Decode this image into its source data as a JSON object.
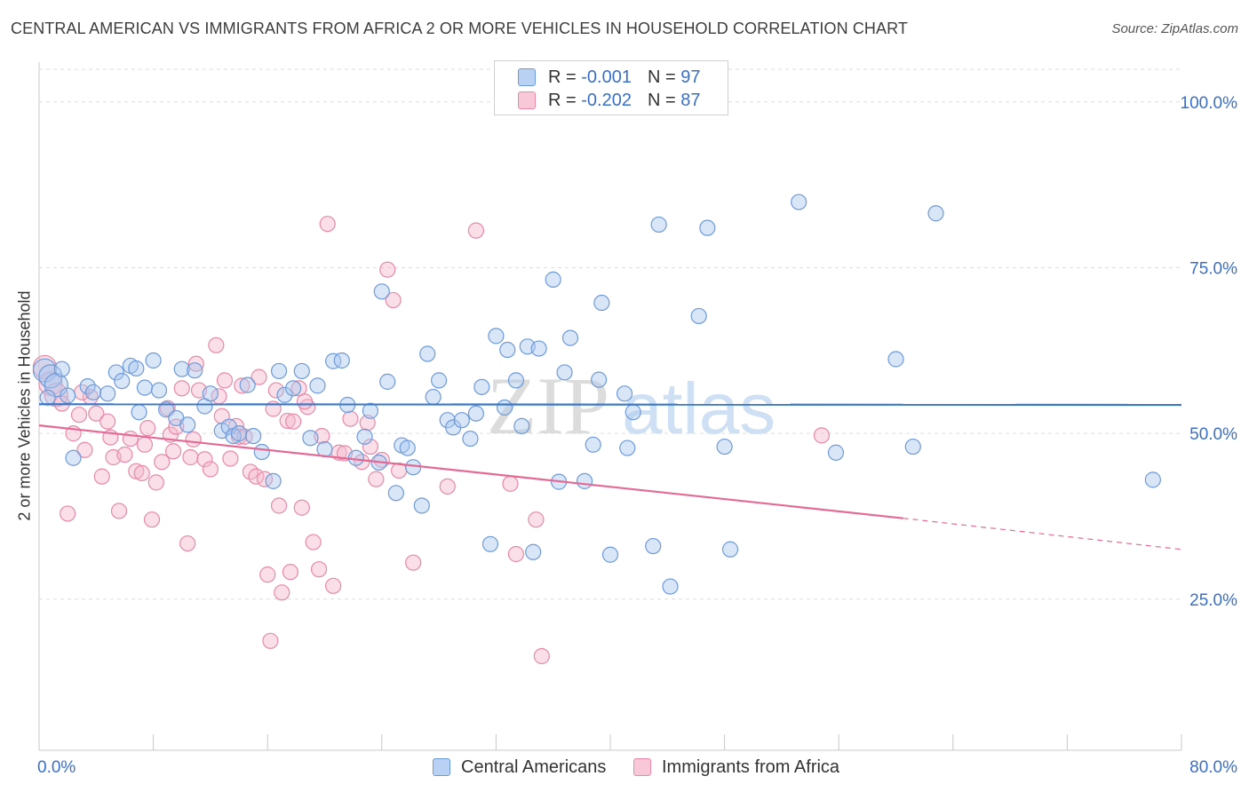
{
  "header": {
    "title": "CENTRAL AMERICAN VS IMMIGRANTS FROM AFRICA 2 OR MORE VEHICLES IN HOUSEHOLD CORRELATION CHART",
    "source": "Source: ZipAtlas.com"
  },
  "watermark": {
    "zip": "ZIP",
    "atlas": "atlas"
  },
  "legend": {
    "rows": [
      {
        "r_label": "R =",
        "r_value": "-0.001",
        "n_label": "N =",
        "n_value": "97"
      },
      {
        "r_label": "R =",
        "r_value": "-0.202",
        "n_label": "N =",
        "n_value": "87"
      }
    ]
  },
  "bottom_legend": {
    "items": [
      {
        "label": "Central Americans"
      },
      {
        "label": "Immigrants from Africa"
      }
    ]
  },
  "chart_data": {
    "type": "scatter",
    "ylabel": "2 or more Vehicles in Household",
    "xlabel": "",
    "xlim": [
      0,
      80
    ],
    "ylim": [
      2.2,
      106
    ],
    "x_tick_labels": [
      "0.0%",
      "80.0%"
    ],
    "y_ticks": [
      25,
      50,
      75,
      100
    ],
    "y_tick_labels": [
      "25.0%",
      "50.0%",
      "75.0%",
      "100.0%"
    ],
    "grid": true,
    "colors": {
      "blue_fill": "#a9c7f0",
      "blue_stroke": "#6f9ad8",
      "blue_line": "#3a78c8",
      "pink_fill": "#f5b7cb",
      "pink_stroke": "#e68aa8",
      "pink_line": "#e46a95",
      "tick_label": "#3a6fc9",
      "grid": "#dddddd"
    },
    "series": [
      {
        "name": "Central Americans",
        "color": "#a9c7f0",
        "trend": {
          "x0": 0,
          "y0": 54.4,
          "x1": 80,
          "y1": 54.3
        },
        "points": [
          [
            0.4,
            59.5
          ],
          [
            0.8,
            58.6
          ],
          [
            1.2,
            57.3
          ],
          [
            1.6,
            59.7
          ],
          [
            2.4,
            46.3
          ],
          [
            3.4,
            57.1
          ],
          [
            3.8,
            56.2
          ],
          [
            4.8,
            56.0
          ],
          [
            5.4,
            59.2
          ],
          [
            5.8,
            57.9
          ],
          [
            6.4,
            60.2
          ],
          [
            6.8,
            59.8
          ],
          [
            7.4,
            56.9
          ],
          [
            8.0,
            61.0
          ],
          [
            8.4,
            56.5
          ],
          [
            8.9,
            53.6
          ],
          [
            9.6,
            52.3
          ],
          [
            10.0,
            59.7
          ],
          [
            10.4,
            51.3
          ],
          [
            10.9,
            59.5
          ],
          [
            11.6,
            54.1
          ],
          [
            12.0,
            56.0
          ],
          [
            12.8,
            50.4
          ],
          [
            13.3,
            51.0
          ],
          [
            13.6,
            49.6
          ],
          [
            14.0,
            50.0
          ],
          [
            14.6,
            57.3
          ],
          [
            15.0,
            49.6
          ],
          [
            15.6,
            47.2
          ],
          [
            16.4,
            42.8
          ],
          [
            16.8,
            59.4
          ],
          [
            17.2,
            55.8
          ],
          [
            17.8,
            56.8
          ],
          [
            18.4,
            59.4
          ],
          [
            19.0,
            49.3
          ],
          [
            19.5,
            57.2
          ],
          [
            20.0,
            47.6
          ],
          [
            20.6,
            60.9
          ],
          [
            21.2,
            61.0
          ],
          [
            21.6,
            54.3
          ],
          [
            22.2,
            46.3
          ],
          [
            22.8,
            49.5
          ],
          [
            23.2,
            53.4
          ],
          [
            23.8,
            45.6
          ],
          [
            24.0,
            71.4
          ],
          [
            24.4,
            57.8
          ],
          [
            25.0,
            41.0
          ],
          [
            25.4,
            48.2
          ],
          [
            25.8,
            47.8
          ],
          [
            26.2,
            44.9
          ],
          [
            26.8,
            39.1
          ],
          [
            27.2,
            62.0
          ],
          [
            27.6,
            55.5
          ],
          [
            28.0,
            58.0
          ],
          [
            28.6,
            52.0
          ],
          [
            29.0,
            50.9
          ],
          [
            29.6,
            52.0
          ],
          [
            30.2,
            49.2
          ],
          [
            30.6,
            53.0
          ],
          [
            31.0,
            57.0
          ],
          [
            31.6,
            33.3
          ],
          [
            32.0,
            64.7
          ],
          [
            32.6,
            53.9
          ],
          [
            32.8,
            62.6
          ],
          [
            33.4,
            58.0
          ],
          [
            33.8,
            51.1
          ],
          [
            34.2,
            63.1
          ],
          [
            34.6,
            32.1
          ],
          [
            35.0,
            62.8
          ],
          [
            36.0,
            73.2
          ],
          [
            36.4,
            42.7
          ],
          [
            36.8,
            59.2
          ],
          [
            37.2,
            64.4
          ],
          [
            38.2,
            42.8
          ],
          [
            38.8,
            48.3
          ],
          [
            39.2,
            58.1
          ],
          [
            39.4,
            69.7
          ],
          [
            40.0,
            31.7
          ],
          [
            41.0,
            56.0
          ],
          [
            41.2,
            47.8
          ],
          [
            41.6,
            53.2
          ],
          [
            43.0,
            33.0
          ],
          [
            43.4,
            81.5
          ],
          [
            44.2,
            26.9
          ],
          [
            46.2,
            67.7
          ],
          [
            46.8,
            81.0
          ],
          [
            48.0,
            48.0
          ],
          [
            48.4,
            32.5
          ],
          [
            53.2,
            84.9
          ],
          [
            55.8,
            47.1
          ],
          [
            60.0,
            61.2
          ],
          [
            61.2,
            48.0
          ],
          [
            62.8,
            83.2
          ],
          [
            78.0,
            43.0
          ],
          [
            0.6,
            55.4
          ],
          [
            2.0,
            55.7
          ],
          [
            7.0,
            53.2
          ]
        ]
      },
      {
        "name": "Immigrants from Africa",
        "color": "#f5b7cb",
        "trend": {
          "x0": 0,
          "y0": 51.2,
          "x1": 60.5,
          "y1": 37.2,
          "dash_x1": 80,
          "dash_y1": 32.5
        },
        "points": [
          [
            0.4,
            60.0
          ],
          [
            0.8,
            57.5
          ],
          [
            1.2,
            55.8
          ],
          [
            1.6,
            54.5
          ],
          [
            2.0,
            37.9
          ],
          [
            2.4,
            50.0
          ],
          [
            2.8,
            52.8
          ],
          [
            3.2,
            47.5
          ],
          [
            3.6,
            55.5
          ],
          [
            4.0,
            53.0
          ],
          [
            4.4,
            43.5
          ],
          [
            4.8,
            51.8
          ],
          [
            5.2,
            46.4
          ],
          [
            5.6,
            38.3
          ],
          [
            6.0,
            46.8
          ],
          [
            6.4,
            49.2
          ],
          [
            6.8,
            44.3
          ],
          [
            7.2,
            44.0
          ],
          [
            7.6,
            50.8
          ],
          [
            7.9,
            37.0
          ],
          [
            8.2,
            42.6
          ],
          [
            8.6,
            45.7
          ],
          [
            9.0,
            53.8
          ],
          [
            9.2,
            49.8
          ],
          [
            9.6,
            51.0
          ],
          [
            10.0,
            56.8
          ],
          [
            10.4,
            33.4
          ],
          [
            10.6,
            46.4
          ],
          [
            11.0,
            60.5
          ],
          [
            11.2,
            56.5
          ],
          [
            11.6,
            46.1
          ],
          [
            12.0,
            44.6
          ],
          [
            12.4,
            63.3
          ],
          [
            12.8,
            52.6
          ],
          [
            13.0,
            58.0
          ],
          [
            13.4,
            46.2
          ],
          [
            13.8,
            51.1
          ],
          [
            14.0,
            49.5
          ],
          [
            14.4,
            49.5
          ],
          [
            14.8,
            44.2
          ],
          [
            15.2,
            43.5
          ],
          [
            15.4,
            58.5
          ],
          [
            15.8,
            43.1
          ],
          [
            16.0,
            28.7
          ],
          [
            16.2,
            18.7
          ],
          [
            16.4,
            53.7
          ],
          [
            16.6,
            56.5
          ],
          [
            16.8,
            39.1
          ],
          [
            17.0,
            26.0
          ],
          [
            17.4,
            51.9
          ],
          [
            17.6,
            29.1
          ],
          [
            17.8,
            51.8
          ],
          [
            18.2,
            56.8
          ],
          [
            18.4,
            38.8
          ],
          [
            18.8,
            54.0
          ],
          [
            19.2,
            33.6
          ],
          [
            19.6,
            29.5
          ],
          [
            19.8,
            49.6
          ],
          [
            20.2,
            81.6
          ],
          [
            20.6,
            27.0
          ],
          [
            21.0,
            47.1
          ],
          [
            21.4,
            47.0
          ],
          [
            22.6,
            45.7
          ],
          [
            23.2,
            48.0
          ],
          [
            23.6,
            43.1
          ],
          [
            24.0,
            46.0
          ],
          [
            24.4,
            74.7
          ],
          [
            24.8,
            70.1
          ],
          [
            25.2,
            44.4
          ],
          [
            26.2,
            30.5
          ],
          [
            28.6,
            42.0
          ],
          [
            30.6,
            80.6
          ],
          [
            33.0,
            42.4
          ],
          [
            33.4,
            31.8
          ],
          [
            34.8,
            37.0
          ],
          [
            35.2,
            16.4
          ],
          [
            54.8,
            49.7
          ],
          [
            9.4,
            47.3
          ],
          [
            3.0,
            56.2
          ],
          [
            5.0,
            49.4
          ],
          [
            7.4,
            48.3
          ],
          [
            10.8,
            49.1
          ],
          [
            12.6,
            55.6
          ],
          [
            14.2,
            57.2
          ],
          [
            18.6,
            54.8
          ],
          [
            21.8,
            52.2
          ],
          [
            23.0,
            51.6
          ]
        ]
      }
    ]
  }
}
